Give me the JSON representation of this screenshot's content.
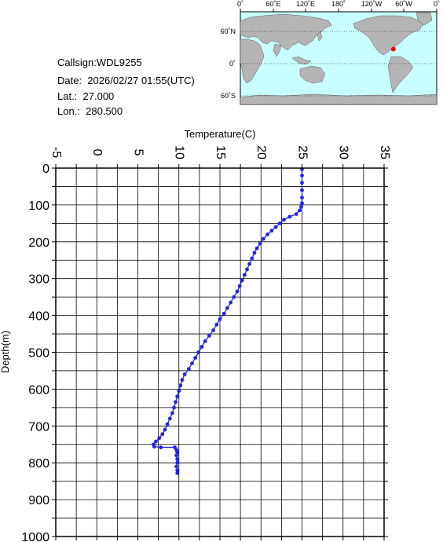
{
  "info": {
    "callsign": "Callsign:WDL9255",
    "date": "Date:  2026/02/27 01:55(UTC)",
    "lat": "Lat.:  27.000",
    "lon": "Lon.:  280.500"
  },
  "map": {
    "top_labels": [
      "0˚",
      "60˚E",
      "120˚E",
      "180˚",
      "120˚W",
      "60˚W",
      "0˚"
    ],
    "side_labels": [
      "60˚N",
      "0˚",
      "60˚S"
    ],
    "ocean_color": "#c8ffff",
    "land_color": "#b4b4b4",
    "marker_color": "#ff0000",
    "marker_lat": 27.0,
    "marker_lon": 280.5
  },
  "chart_data": {
    "type": "line",
    "xlabel": "Temperature(C)",
    "ylabel": "Depth(m)",
    "xlim": [
      -5,
      35
    ],
    "ylim": [
      1000,
      0
    ],
    "x_ticks": [
      "-5",
      "0",
      "5",
      "10",
      "15",
      "20",
      "25",
      "30",
      "35"
    ],
    "y_ticks": [
      "0",
      "100",
      "200",
      "300",
      "400",
      "500",
      "600",
      "700",
      "800",
      "900",
      "1000"
    ],
    "grid": true,
    "line_color": "#2323e6",
    "series": [
      {
        "points": [
          [
            25.0,
            3
          ],
          [
            25.0,
            20
          ],
          [
            25.0,
            40
          ],
          [
            25.0,
            60
          ],
          [
            25.0,
            80
          ],
          [
            25.0,
            95
          ],
          [
            24.9,
            105
          ],
          [
            24.7,
            115
          ],
          [
            24.3,
            125
          ],
          [
            23.5,
            132
          ],
          [
            22.8,
            140
          ],
          [
            22.3,
            150
          ],
          [
            21.8,
            160
          ],
          [
            21.3,
            170
          ],
          [
            20.8,
            180
          ],
          [
            20.3,
            192
          ],
          [
            19.9,
            205
          ],
          [
            19.5,
            218
          ],
          [
            19.2,
            230
          ],
          [
            18.9,
            245
          ],
          [
            18.6,
            260
          ],
          [
            18.3,
            275
          ],
          [
            18.0,
            290
          ],
          [
            17.7,
            305
          ],
          [
            17.4,
            320
          ],
          [
            17.1,
            335
          ],
          [
            16.7,
            350
          ],
          [
            16.3,
            365
          ],
          [
            15.9,
            380
          ],
          [
            15.5,
            395
          ],
          [
            15.0,
            410
          ],
          [
            14.6,
            425
          ],
          [
            14.2,
            440
          ],
          [
            13.7,
            455
          ],
          [
            13.2,
            470
          ],
          [
            12.8,
            485
          ],
          [
            12.4,
            500
          ],
          [
            12.0,
            515
          ],
          [
            11.6,
            530
          ],
          [
            11.2,
            545
          ],
          [
            10.7,
            560
          ],
          [
            10.4,
            575
          ],
          [
            10.2,
            590
          ],
          [
            10.0,
            605
          ],
          [
            9.8,
            620
          ],
          [
            9.6,
            635
          ],
          [
            9.4,
            650
          ],
          [
            9.2,
            665
          ],
          [
            8.9,
            680
          ],
          [
            8.6,
            695
          ],
          [
            8.3,
            710
          ],
          [
            8.0,
            722
          ],
          [
            7.6,
            733
          ],
          [
            7.2,
            742
          ],
          [
            6.9,
            750
          ],
          [
            7.0,
            756
          ],
          [
            7.8,
            758
          ],
          [
            9.5,
            758
          ],
          [
            9.7,
            765
          ],
          [
            9.8,
            772
          ],
          [
            9.7,
            780
          ],
          [
            9.8,
            790
          ],
          [
            9.8,
            800
          ],
          [
            9.7,
            810
          ],
          [
            9.8,
            820
          ],
          [
            9.8,
            828
          ]
        ]
      }
    ]
  }
}
